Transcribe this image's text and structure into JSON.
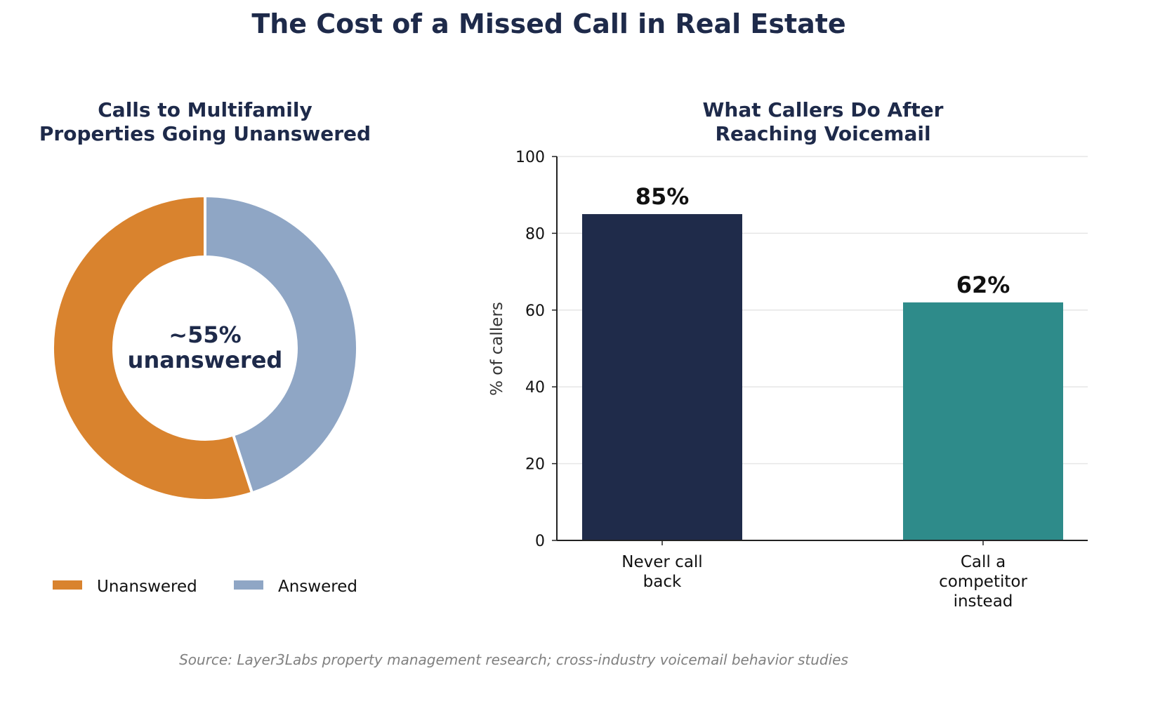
{
  "title": "The Cost of a Missed Call in Real Estate",
  "source": "Source: Layer3Labs property management research; cross-industry voicemail behavior studies",
  "colors": {
    "navy": "#1f2b4a",
    "orange": "#d9832e",
    "blue_gray": "#8fa6c5",
    "teal": "#2e8b8a",
    "grid": "#e6e6e6",
    "axis": "#222222"
  },
  "chart_data": [
    {
      "type": "pie",
      "variant": "donut",
      "title_lines": [
        "Calls to Multifamily",
        "Properties Going Unanswered"
      ],
      "slices": [
        {
          "label": "Unanswered",
          "value": 55,
          "color": "#d9832e"
        },
        {
          "label": "Answered",
          "value": 45,
          "color": "#8fa6c5"
        }
      ],
      "center_label": [
        "~55%",
        "unanswered"
      ],
      "legend": [
        "Unanswered",
        "Answered"
      ],
      "legend_position": "bottom"
    },
    {
      "type": "bar",
      "title_lines": [
        "What Callers Do After",
        "Reaching Voicemail"
      ],
      "categories": [
        [
          "Never call",
          "back"
        ],
        [
          "Call a",
          "competitor",
          "instead"
        ]
      ],
      "values": [
        85,
        62
      ],
      "data_labels": [
        "85%",
        "62%"
      ],
      "colors": [
        "#1f2b4a",
        "#2e8b8a"
      ],
      "xlabel": "",
      "ylabel": "% of callers",
      "ylim": [
        0,
        100
      ],
      "yticks": [
        0,
        20,
        40,
        60,
        80,
        100
      ],
      "grid": true
    }
  ]
}
